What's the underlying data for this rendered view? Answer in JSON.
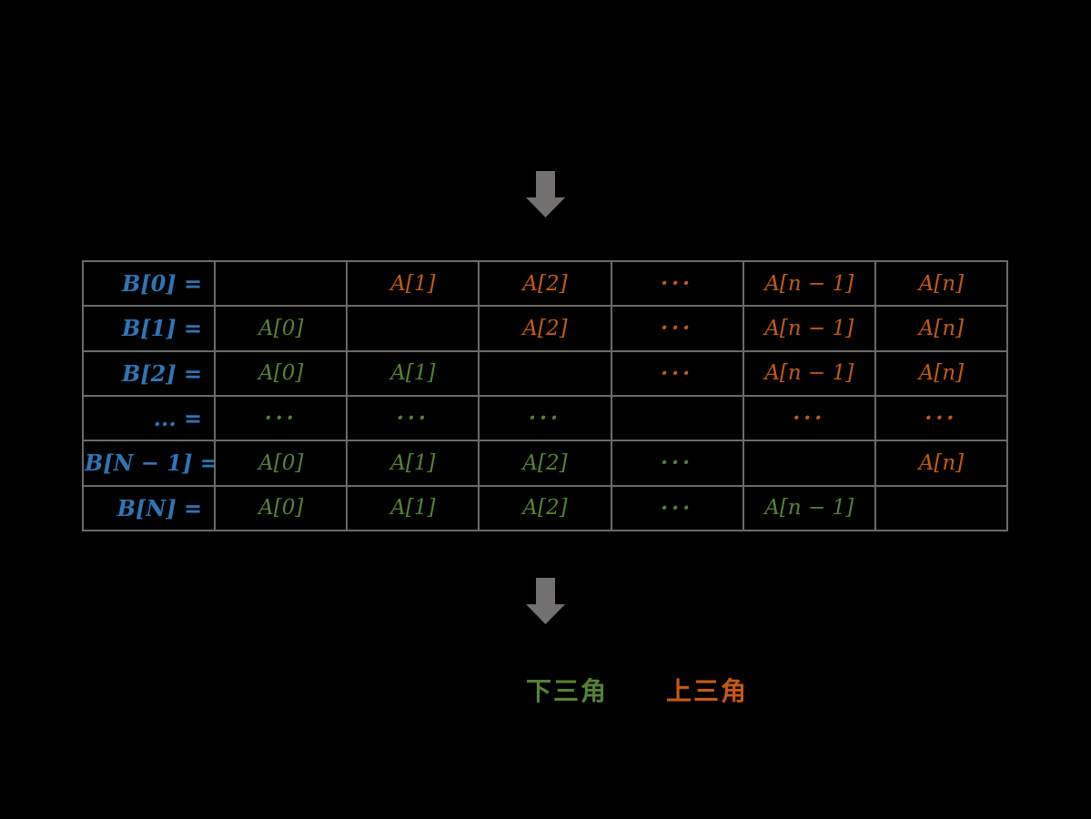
{
  "colors": {
    "background": "#000000",
    "blue": "#2E75B6",
    "green": "#548235",
    "orange": "#C55A11",
    "border": "#6a6a6a",
    "arrow_gray": "#737070"
  },
  "arrows": {
    "top": "down-arrow",
    "bottom": "down-arrow"
  },
  "table": {
    "rows": [
      {
        "label": "B[0] =",
        "label_color": "blue",
        "cells": [
          {
            "text": "",
            "color": null
          },
          {
            "text": "A[1]",
            "color": "orange"
          },
          {
            "text": "A[2]",
            "color": "orange"
          },
          {
            "text": "···",
            "color": "orange",
            "dots": true
          },
          {
            "text": "A[n − 1]",
            "color": "orange"
          },
          {
            "text": "A[n]",
            "color": "orange"
          }
        ]
      },
      {
        "label": "B[1] =",
        "label_color": "blue",
        "cells": [
          {
            "text": "A[0]",
            "color": "green"
          },
          {
            "text": "",
            "color": null
          },
          {
            "text": "A[2]",
            "color": "orange"
          },
          {
            "text": "···",
            "color": "orange",
            "dots": true
          },
          {
            "text": "A[n − 1]",
            "color": "orange"
          },
          {
            "text": "A[n]",
            "color": "orange"
          }
        ]
      },
      {
        "label": "B[2] =",
        "label_color": "blue",
        "cells": [
          {
            "text": "A[0]",
            "color": "green"
          },
          {
            "text": "A[1]",
            "color": "green"
          },
          {
            "text": "",
            "color": null
          },
          {
            "text": "···",
            "color": "orange",
            "dots": true
          },
          {
            "text": "A[n − 1]",
            "color": "orange"
          },
          {
            "text": "A[n]",
            "color": "orange"
          }
        ]
      },
      {
        "label": "... =",
        "label_color": "blue",
        "cells": [
          {
            "text": "···",
            "color": "green",
            "dots": true
          },
          {
            "text": "···",
            "color": "green",
            "dots": true
          },
          {
            "text": "···",
            "color": "green",
            "dots": true
          },
          {
            "text": "",
            "color": null
          },
          {
            "text": "···",
            "color": "orange",
            "dots": true
          },
          {
            "text": "···",
            "color": "orange",
            "dots": true
          }
        ]
      },
      {
        "label": "B[N − 1] =",
        "label_color": "blue",
        "cells": [
          {
            "text": "A[0]",
            "color": "green"
          },
          {
            "text": "A[1]",
            "color": "green"
          },
          {
            "text": "A[2]",
            "color": "green"
          },
          {
            "text": "···",
            "color": "green",
            "dots": true
          },
          {
            "text": "",
            "color": null
          },
          {
            "text": "A[n]",
            "color": "orange"
          }
        ]
      },
      {
        "label": "B[N] =",
        "label_color": "blue",
        "cells": [
          {
            "text": "A[0]",
            "color": "green"
          },
          {
            "text": "A[1]",
            "color": "green"
          },
          {
            "text": "A[2]",
            "color": "green"
          },
          {
            "text": "···",
            "color": "green",
            "dots": true
          },
          {
            "text": "A[n − 1]",
            "color": "green"
          },
          {
            "text": "",
            "color": null
          }
        ]
      }
    ]
  },
  "legend": {
    "lower": "下三角",
    "upper": "上三角"
  }
}
